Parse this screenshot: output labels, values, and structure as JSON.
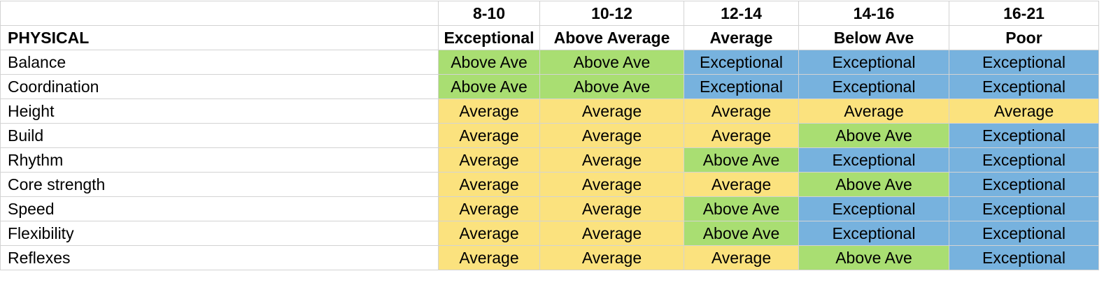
{
  "sheet": {
    "section_title": "PHYSICAL",
    "age_ranges": [
      "8-10",
      "10-12",
      "12-14",
      "14-16",
      "16-21"
    ],
    "ratings_header": [
      "Exceptional",
      "Above Average",
      "Average",
      "Below Ave",
      "Poor"
    ],
    "rows": [
      {
        "label": "Balance",
        "values": [
          "Above Ave",
          "Above Ave",
          "Exceptional",
          "Exceptional",
          "Exceptional"
        ]
      },
      {
        "label": "Coordination",
        "values": [
          "Above Ave",
          "Above Ave",
          "Exceptional",
          "Exceptional",
          "Exceptional"
        ]
      },
      {
        "label": "Height",
        "values": [
          "Average",
          "Average",
          "Average",
          "Average",
          "Average"
        ]
      },
      {
        "label": "Build",
        "values": [
          "Average",
          "Average",
          "Average",
          "Above Ave",
          "Exceptional"
        ]
      },
      {
        "label": "Rhythm",
        "values": [
          "Average",
          "Average",
          "Above Ave",
          "Exceptional",
          "Exceptional"
        ]
      },
      {
        "label": "Core strength",
        "values": [
          "Average",
          "Average",
          "Average",
          "Above Ave",
          "Exceptional"
        ]
      },
      {
        "label": "Speed",
        "values": [
          "Average",
          "Average",
          "Above Ave",
          "Exceptional",
          "Exceptional"
        ]
      },
      {
        "label": "Flexibility",
        "values": [
          "Average",
          "Average",
          "Above Ave",
          "Exceptional",
          "Exceptional"
        ]
      },
      {
        "label": "Reflexes",
        "values": [
          "Average",
          "Average",
          "Average",
          "Above Ave",
          "Exceptional"
        ]
      }
    ]
  },
  "colors": {
    "Exceptional": "#77b2de",
    "Above Ave": "#a9de72",
    "Average": "#fbe27e",
    "grid_line": "#d3d3d3"
  }
}
